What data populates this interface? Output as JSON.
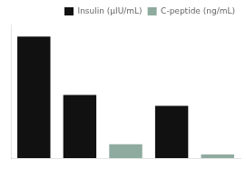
{
  "chart_data": {
    "type": "bar",
    "categories": [
      null,
      null,
      null,
      null,
      null
    ],
    "series": [
      {
        "name": "Insulin (µIU/mL)",
        "color": "#111111",
        "values": [
          1000,
          520,
          null,
          430,
          null
        ]
      },
      {
        "name": "C-peptide (ng/mL)",
        "color": "#8faba0",
        "values": [
          null,
          null,
          115,
          null,
          30
        ]
      }
    ],
    "ylim": [
      0,
      1100
    ],
    "yticks": [
      0,
      200,
      400,
      600,
      800,
      1000
    ],
    "grid": false,
    "legend": "upper right",
    "tick_labels": false
  }
}
